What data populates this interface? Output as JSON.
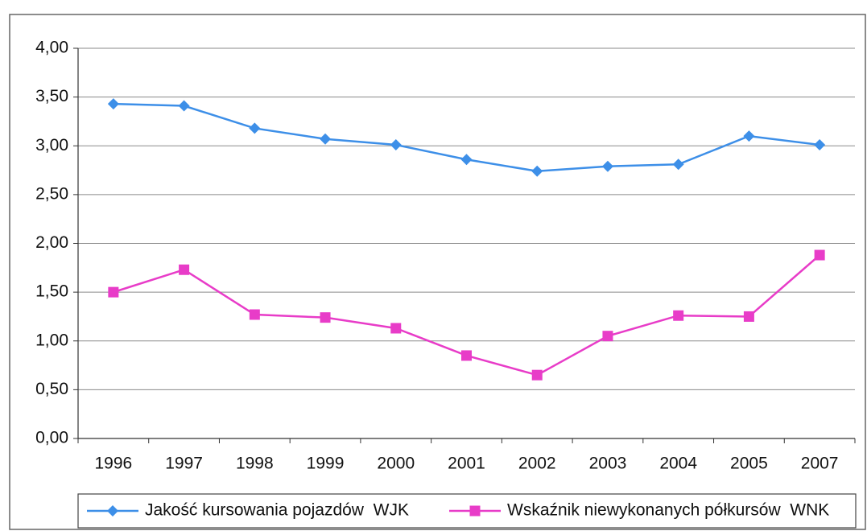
{
  "chart_data": {
    "type": "line",
    "categories": [
      "1996",
      "1997",
      "1998",
      "1999",
      "2000",
      "2001",
      "2002",
      "2003",
      "2004",
      "2005",
      "2007"
    ],
    "series": [
      {
        "name": "Jakość kursowania pojazdów  WJK",
        "color": "#3d8fe8",
        "marker": "diamond",
        "values": [
          3.43,
          3.41,
          3.18,
          3.07,
          3.01,
          2.86,
          2.74,
          2.79,
          2.81,
          3.1,
          3.01
        ]
      },
      {
        "name": "Wskaźnik niewykonanych półkursów  WNK",
        "color": "#e83cc8",
        "marker": "square",
        "values": [
          1.5,
          1.73,
          1.27,
          1.24,
          1.13,
          0.85,
          0.65,
          1.05,
          1.26,
          1.25,
          1.88
        ]
      }
    ],
    "ylim": [
      0,
      4
    ],
    "yticks": [
      {
        "value": 0,
        "label": "0,00"
      },
      {
        "value": 0.5,
        "label": "0,50"
      },
      {
        "value": 1,
        "label": "1,00"
      },
      {
        "value": 1.5,
        "label": "1,50"
      },
      {
        "value": 2,
        "label": "2,00"
      },
      {
        "value": 2.5,
        "label": "2,50"
      },
      {
        "value": 3,
        "label": "3,00"
      },
      {
        "value": 3.5,
        "label": "3,50"
      },
      {
        "value": 4,
        "label": "4,00"
      }
    ],
    "grid": true,
    "legend": "bottom"
  }
}
